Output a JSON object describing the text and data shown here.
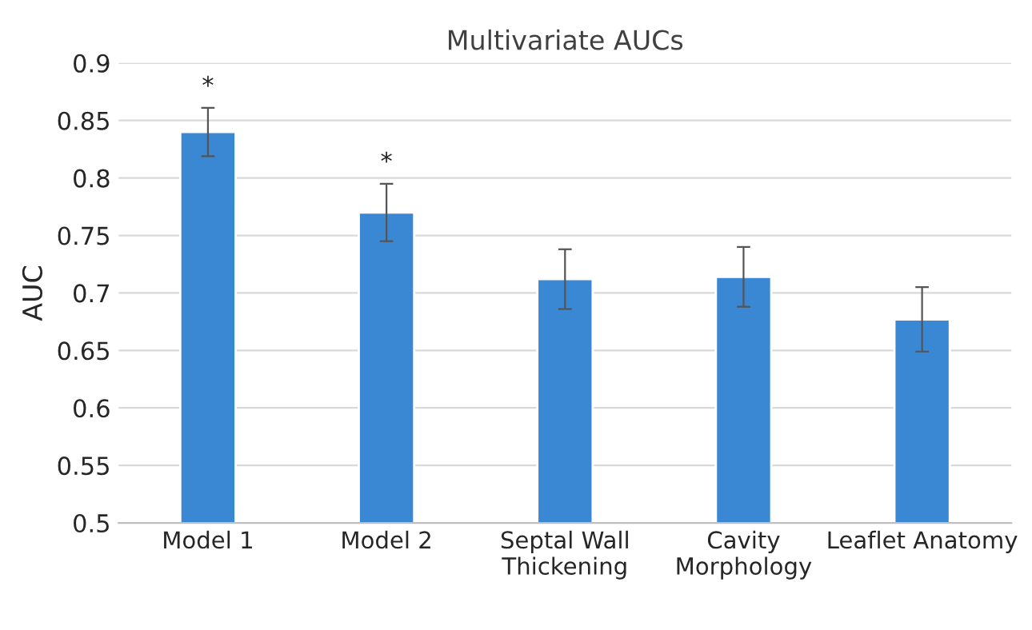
{
  "chart_data": {
    "type": "bar",
    "title": "Multivariate AUCs",
    "ylabel": "AUC",
    "categories": [
      "Model 1",
      "Model 2",
      "Septal Wall\nThickening",
      "Cavity\nMorphology",
      "Leaflet Anatomy"
    ],
    "series": [
      {
        "color": "#3a87d4",
        "values": [
          0.84,
          0.77,
          0.712,
          0.714,
          0.677
        ],
        "errors": [
          0.021,
          0.025,
          0.026,
          0.026,
          0.028
        ],
        "value_labels": [
          "*",
          "*",
          null,
          null,
          null
        ]
      }
    ],
    "ylim": [
      0.5,
      0.9
    ],
    "yticks": [
      0.5,
      0.55,
      0.6,
      0.65,
      0.7,
      0.75,
      0.8,
      0.85,
      0.9
    ],
    "grid": "y"
  }
}
